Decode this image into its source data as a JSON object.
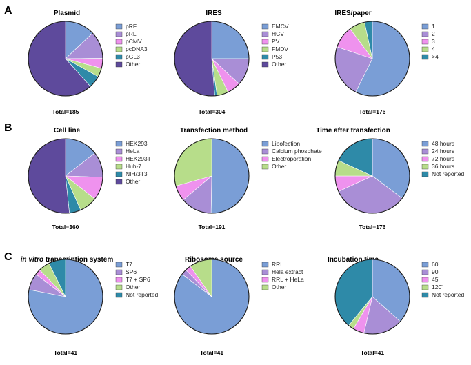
{
  "colors": {
    "blue": "#7a9ed6",
    "lavender": "#a98ed6",
    "pink": "#ef92ee",
    "green": "#b7dd8a",
    "teal": "#2e8aa8",
    "purple": "#5e4a9c",
    "edge": "#1a1a1a"
  },
  "chart_data": [
    {
      "type": "pie",
      "panel_letter": "A",
      "title": "Plasmid",
      "title_italic_prefix": "",
      "total_label": "Total=185",
      "series": [
        {
          "name": "pRF",
          "value": 24,
          "color": "blue"
        },
        {
          "name": "pRL",
          "value": 22,
          "color": "lavender"
        },
        {
          "name": "pCMV",
          "value": 8,
          "color": "pink"
        },
        {
          "name": "pcDNA3",
          "value": 7,
          "color": "green"
        },
        {
          "name": "pGL3",
          "value": 10,
          "color": "teal"
        },
        {
          "name": "Other",
          "value": 114,
          "color": "purple"
        }
      ]
    },
    {
      "type": "pie",
      "panel_letter": "",
      "title": "IRES",
      "title_italic_prefix": "",
      "total_label": "Total=304",
      "series": [
        {
          "name": "EMCV",
          "value": 76,
          "color": "blue"
        },
        {
          "name": "HCV",
          "value": 36,
          "color": "lavender"
        },
        {
          "name": "PV",
          "value": 18,
          "color": "pink"
        },
        {
          "name": "FMDV",
          "value": 15,
          "color": "green"
        },
        {
          "name": "P53",
          "value": 3,
          "color": "teal"
        },
        {
          "name": "Other",
          "value": 156,
          "color": "purple"
        }
      ]
    },
    {
      "type": "pie",
      "panel_letter": "",
      "title": "IRES/paper",
      "title_italic_prefix": "",
      "total_label": "Total=176",
      "series": [
        {
          "name": "1",
          "value": 101,
          "color": "blue"
        },
        {
          "name": "2",
          "value": 40,
          "color": "lavender"
        },
        {
          "name": "3",
          "value": 17,
          "color": "pink"
        },
        {
          "name": "4",
          "value": 12,
          "color": "green"
        },
        {
          "name": ">4",
          "value": 6,
          "color": "teal"
        }
      ]
    },
    {
      "type": "pie",
      "panel_letter": "B",
      "title": "Cell line",
      "title_italic_prefix": "",
      "total_label": "Total=360",
      "series": [
        {
          "name": "HEK293",
          "value": 52,
          "color": "blue"
        },
        {
          "name": "HeLa",
          "value": 40,
          "color": "lavender"
        },
        {
          "name": "HEK293T",
          "value": 36,
          "color": "pink"
        },
        {
          "name": "Huh-7",
          "value": 28,
          "color": "green"
        },
        {
          "name": "NIH/3T3",
          "value": 18,
          "color": "teal"
        },
        {
          "name": "Other",
          "value": 186,
          "color": "purple"
        }
      ]
    },
    {
      "type": "pie",
      "panel_letter": "",
      "title": "Transfection method",
      "title_italic_prefix": "",
      "total_label": "Total=191",
      "series": [
        {
          "name": "Lipofection",
          "value": 96,
          "color": "blue"
        },
        {
          "name": "Calcium phosphate",
          "value": 26,
          "color": "lavender"
        },
        {
          "name": "Electroporation",
          "value": 13,
          "color": "pink"
        },
        {
          "name": "Other",
          "value": 56,
          "color": "green"
        }
      ]
    },
    {
      "type": "pie",
      "panel_letter": "",
      "title": "Time after transfection",
      "title_italic_prefix": "",
      "total_label": "Total=176",
      "series": [
        {
          "name": "48 hours",
          "value": 62,
          "color": "blue"
        },
        {
          "name": "24 hours",
          "value": 58,
          "color": "lavender"
        },
        {
          "name": "72 hours",
          "value": 12,
          "color": "pink"
        },
        {
          "name": "36 hours",
          "value": 12,
          "color": "green"
        },
        {
          "name": "Not reported",
          "value": 32,
          "color": "teal"
        }
      ]
    },
    {
      "type": "pie",
      "panel_letter": "C",
      "title": " transcription system",
      "title_italic_prefix": "in vitro",
      "total_label": "Total=41",
      "series": [
        {
          "name": "T7",
          "value": 32,
          "color": "blue"
        },
        {
          "name": "SP6",
          "value": 3,
          "color": "lavender"
        },
        {
          "name": "T7 + SP6",
          "value": 1,
          "color": "pink"
        },
        {
          "name": "Other",
          "value": 2,
          "color": "green"
        },
        {
          "name": "Not reported",
          "value": 3,
          "color": "teal"
        }
      ]
    },
    {
      "type": "pie",
      "panel_letter": "",
      "title": "Ribosome source",
      "title_italic_prefix": "",
      "total_label": "Total=41",
      "series": [
        {
          "name": "RRL",
          "value": 35,
          "color": "blue"
        },
        {
          "name": "Hela extract",
          "value": 1,
          "color": "lavender"
        },
        {
          "name": "RRL + HeLa",
          "value": 1,
          "color": "pink"
        },
        {
          "name": "Other",
          "value": 4,
          "color": "green"
        }
      ]
    },
    {
      "type": "pie",
      "panel_letter": "",
      "title": "Incubation time",
      "title_italic_prefix": "",
      "total_label": "Total=41",
      "series": [
        {
          "name": "60'",
          "value": 15,
          "color": "blue"
        },
        {
          "name": "90'",
          "value": 7,
          "color": "lavender"
        },
        {
          "name": "45'",
          "value": 2,
          "color": "pink"
        },
        {
          "name": "120'",
          "value": 1,
          "color": "green"
        },
        {
          "name": "Not reported",
          "value": 16,
          "color": "teal"
        }
      ]
    }
  ]
}
